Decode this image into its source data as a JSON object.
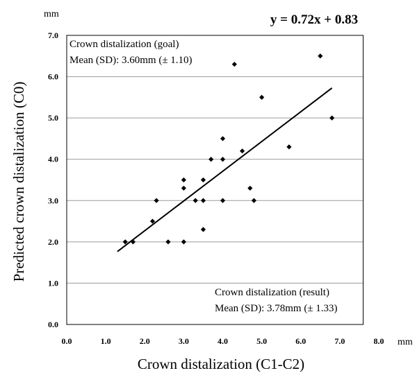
{
  "chart_data": {
    "type": "scatter",
    "title": "",
    "equation": "y = 0.72x + 0.83",
    "xlabel": "Crown distalization (C1-C2)",
    "ylabel": "Predicted crown distalization (C0)",
    "x_unit": "mm",
    "y_unit": "mm",
    "xlim": [
      0,
      8
    ],
    "ylim": [
      0,
      7
    ],
    "x_ticks": [
      "0.0",
      "1.0",
      "2.0",
      "3.0",
      "4.0",
      "5.0",
      "6.0",
      "7.0",
      "8.0"
    ],
    "y_ticks": [
      "0.0",
      "1.0",
      "2.0",
      "3.0",
      "4.0",
      "5.0",
      "6.0",
      "7.0"
    ],
    "grid": "horizontal",
    "annotations": {
      "goal_title": "Crown distalization (goal)",
      "goal_stat": "Mean (SD): 3.60mm (± 1.10)",
      "result_title": "Crown distalization (result)",
      "result_stat": "Mean (SD): 3.78mm (± 1.33)"
    },
    "points": [
      {
        "x": 1.5,
        "y": 2.0
      },
      {
        "x": 1.7,
        "y": 2.0
      },
      {
        "x": 2.2,
        "y": 2.5
      },
      {
        "x": 2.3,
        "y": 3.0
      },
      {
        "x": 2.6,
        "y": 2.0
      },
      {
        "x": 3.0,
        "y": 2.0
      },
      {
        "x": 3.0,
        "y": 3.3
      },
      {
        "x": 3.0,
        "y": 3.5
      },
      {
        "x": 3.3,
        "y": 3.0
      },
      {
        "x": 3.5,
        "y": 3.0
      },
      {
        "x": 3.5,
        "y": 3.5
      },
      {
        "x": 3.5,
        "y": 2.3
      },
      {
        "x": 3.7,
        "y": 4.0
      },
      {
        "x": 4.0,
        "y": 4.0
      },
      {
        "x": 4.0,
        "y": 4.5
      },
      {
        "x": 4.0,
        "y": 3.0
      },
      {
        "x": 4.3,
        "y": 6.3
      },
      {
        "x": 4.5,
        "y": 4.2
      },
      {
        "x": 4.7,
        "y": 3.3
      },
      {
        "x": 4.8,
        "y": 3.0
      },
      {
        "x": 5.0,
        "y": 5.5
      },
      {
        "x": 5.7,
        "y": 4.3
      },
      {
        "x": 6.5,
        "y": 6.5
      },
      {
        "x": 6.8,
        "y": 5.0
      }
    ],
    "trendline": {
      "slope": 0.72,
      "intercept": 0.83,
      "x_from": 1.3,
      "x_to": 6.8
    }
  }
}
